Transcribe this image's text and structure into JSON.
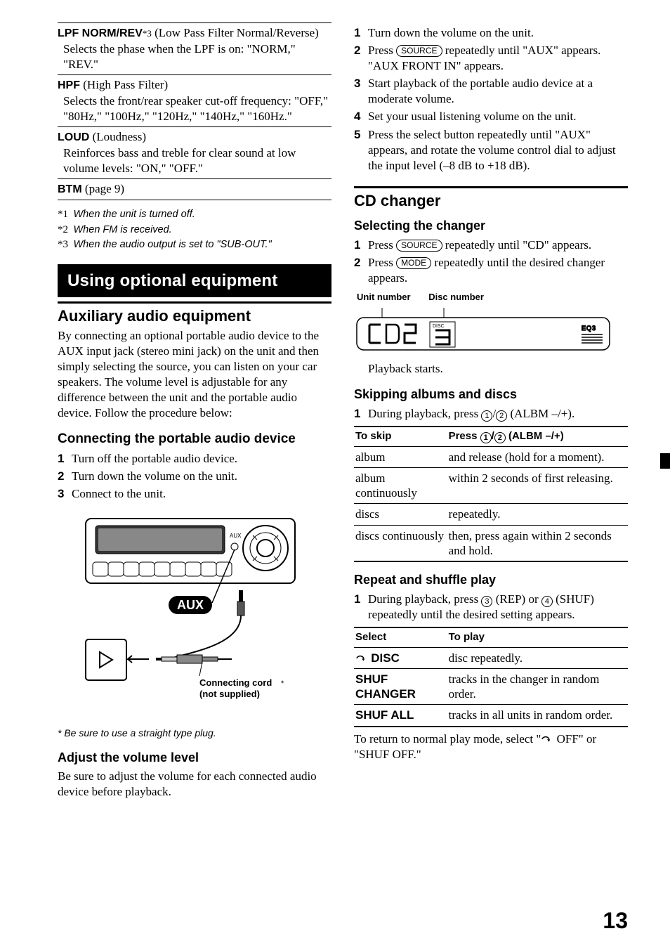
{
  "leftCol": {
    "defs": [
      {
        "termBold": "LPF NORM/REV",
        "supAfter": "*3",
        "paren": " (Low Pass Filter Normal/Reverse)",
        "body": "Selects the phase when the LPF is on: \"NORM,\" \"REV.\""
      },
      {
        "termBold": "HPF",
        "paren": " (High Pass Filter)",
        "body": "Selects the front/rear speaker cut-off frequency: \"OFF,\" \"80Hz,\" \"100Hz,\" \"120Hz,\" \"140Hz,\" \"160Hz.\""
      },
      {
        "termBold": "LOUD",
        "paren": " (Loudness)",
        "body": "Reinforces bass and treble for clear sound at low volume levels: \"ON,\" \"OFF.\""
      },
      {
        "termBold": "BTM",
        "paren": " (page 9)",
        "body": ""
      }
    ],
    "footnotes": [
      {
        "mark": "*1",
        "text": "When the unit is turned off."
      },
      {
        "mark": "*2",
        "text": "When FM is received."
      },
      {
        "mark": "*3",
        "text": "When the audio output is set to \"SUB-OUT.\""
      }
    ],
    "banner": "Using optional equipment",
    "auxHeading": "Auxiliary audio equipment",
    "auxPara": "By connecting an optional portable audio device to the AUX input jack (stereo mini jack) on the unit and then simply selecting the source, you can listen on your car speakers. The volume level is adjustable for any difference between the unit and the portable audio device. Follow the procedure below:",
    "connectHeading": "Connecting the portable audio device",
    "connectSteps": [
      "Turn off the portable audio device.",
      "Turn down the volume on the unit.",
      "Connect to the unit."
    ],
    "diagramLabels": {
      "aux": "AUX",
      "auxSmall": "AUX",
      "cord1": "Connecting cord",
      "cord2": "(not supplied)"
    },
    "plugNote": "Be sure to use a straight type plug.",
    "adjustHeading": "Adjust the volume level",
    "adjustPara": "Be sure to adjust the volume for each connected audio device before playback."
  },
  "rightCol": {
    "topSteps": [
      {
        "n": "1",
        "html": "Turn down the volume on the unit."
      },
      {
        "n": "2",
        "html": "Press <span class=\"btn\">SOURCE</span> repeatedly until \"AUX\" appears.<br>\"AUX FRONT IN\" appears."
      },
      {
        "n": "3",
        "html": "Start playback of the portable audio device at a moderate volume."
      },
      {
        "n": "4",
        "html": "Set your usual listening volume on the unit."
      },
      {
        "n": "5",
        "html": "Press the select button repeatedly until \"AUX\" appears, and rotate the volume control dial to adjust the input level (–8 dB to +18 dB)."
      }
    ],
    "cdHeading": "CD changer",
    "selHeading": "Selecting the changer",
    "selSteps": [
      {
        "n": "1",
        "html": "Press <span class=\"btn\">SOURCE</span> repeatedly until \"CD\" appears."
      },
      {
        "n": "2",
        "html": "Press <span class=\"btn\">MODE</span> repeatedly until the desired changer appears."
      }
    ],
    "labels": {
      "unit": "Unit number",
      "disc": "Disc number",
      "discSmall": "DISC"
    },
    "playbackStarts": "Playback starts.",
    "skipHeading": "Skipping albums and discs",
    "skipStep": {
      "n": "1",
      "html": "During playback, press <span class=\"circ\">1</span>/<span class=\"circ\">2</span> (ALBM –/+)."
    },
    "skipTable": {
      "headers": [
        "To skip",
        "Press <span class=\"circ\">1</span>/<span class=\"circ\">2</span> (ALBM –/+)"
      ],
      "rows": [
        [
          "album",
          "and release (hold for a moment)."
        ],
        [
          "album continuously",
          "within 2 seconds of first releasing."
        ],
        [
          "discs",
          "repeatedly."
        ],
        [
          "discs continuously",
          "then, press again within 2 seconds and hold."
        ]
      ]
    },
    "repeatHeading": "Repeat and shuffle play",
    "repeatStep": {
      "n": "1",
      "html": "During playback, press <span class=\"circ\">3</span> (REP) or <span class=\"circ\">4</span> (SHUF) repeatedly until the desired setting appears."
    },
    "repeatTable": {
      "headers": [
        "Select",
        "To play"
      ],
      "rows": [
        {
          "c1html": "<svg class=\"repeat-icon\" width=\"18\" height=\"12\" viewBox=\"0 0 18 12\"><path d=\"M2,6 A5,4 0 1 1 11,9\" fill=\"none\" stroke=\"#000\" stroke-width=\"1.5\"/><path d=\"M11,9 l-2,-3 l4,1 z\" fill=\"#000\"/></svg> <span class=\"sans-bold\">DISC</span>",
          "c2": "disc repeatedly."
        },
        {
          "c1html": "<span class=\"sans-bold\">SHUF CHANGER</span>",
          "c2": "tracks in the changer in random order."
        },
        {
          "c1html": "<span class=\"sans-bold\">SHUF ALL</span>",
          "c2": "tracks in all units in random order."
        }
      ]
    },
    "returnNote": {
      "pre": "To return to normal play mode, select \"",
      "post": " OFF\" or \"SHUF OFF.\""
    }
  },
  "pageNum": "13"
}
